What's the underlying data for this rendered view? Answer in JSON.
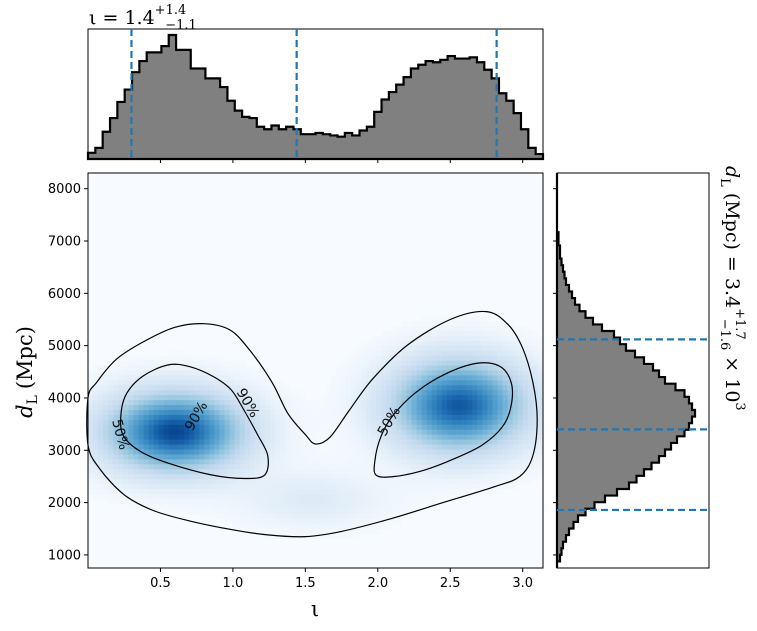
{
  "chart_data": [
    {
      "panel": "inclination-marginal",
      "type": "histogram",
      "title_main": "ι = 1.4",
      "title_sup": "+1.4",
      "title_sub": "−1.1",
      "quantiles": [
        0.3,
        1.44,
        2.82
      ],
      "xlim": [
        0.0,
        3.14
      ],
      "bins": [
        0.0,
        3.14
      ],
      "counts": [
        0.05,
        0.09,
        0.22,
        0.33,
        0.46,
        0.56,
        0.7,
        0.79,
        0.86,
        0.86,
        0.91,
        1.0,
        0.88,
        0.88,
        0.73,
        0.73,
        0.65,
        0.65,
        0.58,
        0.47,
        0.39,
        0.34,
        0.33,
        0.26,
        0.24,
        0.27,
        0.24,
        0.26,
        0.24,
        0.2,
        0.2,
        0.21,
        0.2,
        0.19,
        0.18,
        0.21,
        0.19,
        0.23,
        0.26,
        0.38,
        0.48,
        0.54,
        0.6,
        0.66,
        0.73,
        0.76,
        0.79,
        0.78,
        0.8,
        0.83,
        0.81,
        0.81,
        0.82,
        0.78,
        0.72,
        0.65,
        0.53,
        0.47,
        0.37,
        0.24,
        0.09,
        0.04
      ],
      "fill_color": "#808080",
      "quantile_color": "#1f77b4"
    },
    {
      "panel": "joint-density",
      "type": "heatmap",
      "xlabel": "ι",
      "ylabel": "d",
      "ylabel_sub": "L",
      "ylabel_unit": "(Mpc)",
      "xlim": [
        0.0,
        3.14
      ],
      "ylim": [
        750,
        8300
      ],
      "xticks": [
        "0.5",
        "1.0",
        "1.5",
        "2.0",
        "2.5",
        "3.0"
      ],
      "xtick_values": [
        0.5,
        1.0,
        1.5,
        2.0,
        2.5,
        3.0
      ],
      "yticks": [
        "1000",
        "2000",
        "3000",
        "4000",
        "5000",
        "6000",
        "7000",
        "8000"
      ],
      "ytick_values": [
        1000,
        2000,
        3000,
        4000,
        5000,
        6000,
        7000,
        8000
      ],
      "colormap": "Blues",
      "contour_labels": [
        "90%",
        "50%",
        "90%",
        "50%"
      ],
      "contour_label_positions": [
        [
          0.75,
          3650,
          -60
        ],
        [
          0.22,
          3300,
          75
        ],
        [
          1.1,
          3900,
          60
        ],
        [
          2.08,
          3550,
          -60
        ]
      ],
      "modes": [
        {
          "center": [
            0.6,
            3350
          ],
          "spread": [
            0.33,
            520
          ],
          "weight": 1.0
        },
        {
          "center": [
            2.56,
            3850
          ],
          "spread": [
            0.32,
            600
          ],
          "weight": 0.95
        },
        {
          "center": [
            1.55,
            2050
          ],
          "spread": [
            0.35,
            380
          ],
          "weight": 0.12
        }
      ],
      "contour_90_outer": [
        [
          0.0,
          4000
        ],
        [
          0.06,
          4300
        ],
        [
          0.2,
          4750
        ],
        [
          0.4,
          5100
        ],
        [
          0.6,
          5350
        ],
        [
          0.8,
          5420
        ],
        [
          0.98,
          5300
        ],
        [
          1.12,
          4900
        ],
        [
          1.27,
          4300
        ],
        [
          1.38,
          3700
        ],
        [
          1.5,
          3300
        ],
        [
          1.57,
          3120
        ],
        [
          1.67,
          3250
        ],
        [
          1.8,
          3750
        ],
        [
          1.96,
          4350
        ],
        [
          2.2,
          5000
        ],
        [
          2.5,
          5500
        ],
        [
          2.75,
          5650
        ],
        [
          2.9,
          5400
        ],
        [
          3.0,
          4950
        ],
        [
          3.07,
          4300
        ],
        [
          3.1,
          3600
        ],
        [
          3.07,
          2900
        ],
        [
          2.98,
          2500
        ],
        [
          2.8,
          2300
        ],
        [
          2.45,
          2000
        ],
        [
          2.1,
          1700
        ],
        [
          1.75,
          1450
        ],
        [
          1.5,
          1350
        ],
        [
          1.25,
          1380
        ],
        [
          1.0,
          1480
        ],
        [
          0.7,
          1650
        ],
        [
          0.45,
          1850
        ],
        [
          0.25,
          2150
        ],
        [
          0.08,
          2650
        ],
        [
          0.0,
          3100
        ]
      ],
      "contour_50_left": [
        [
          0.23,
          3750
        ],
        [
          0.27,
          4100
        ],
        [
          0.38,
          4420
        ],
        [
          0.55,
          4630
        ],
        [
          0.7,
          4600
        ],
        [
          0.87,
          4400
        ],
        [
          0.99,
          4150
        ],
        [
          1.08,
          3750
        ],
        [
          1.17,
          3300
        ],
        [
          1.24,
          2900
        ],
        [
          1.22,
          2530
        ],
        [
          1.08,
          2460
        ],
        [
          0.85,
          2530
        ],
        [
          0.56,
          2750
        ],
        [
          0.36,
          2980
        ],
        [
          0.24,
          3300
        ]
      ],
      "contour_50_right": [
        [
          1.98,
          2800
        ],
        [
          2.02,
          3250
        ],
        [
          2.1,
          3650
        ],
        [
          2.26,
          4100
        ],
        [
          2.46,
          4450
        ],
        [
          2.68,
          4660
        ],
        [
          2.84,
          4610
        ],
        [
          2.92,
          4300
        ],
        [
          2.92,
          3850
        ],
        [
          2.86,
          3450
        ],
        [
          2.72,
          3100
        ],
        [
          2.52,
          2830
        ],
        [
          2.32,
          2620
        ],
        [
          2.12,
          2500
        ],
        [
          1.99,
          2520
        ]
      ],
      "contour_color": "#000000"
    },
    {
      "panel": "distance-marginal",
      "type": "histogram",
      "orientation": "horizontal",
      "title_main": "d",
      "title_sub_letter": "L",
      "title_unit": "(Mpc) = 3.4",
      "title_sup": "+1.7",
      "title_sub": "−1.6",
      "title_suffix": "× 10",
      "title_exp": "3",
      "quantiles": [
        1860,
        3400,
        5120
      ],
      "ylim": [
        750,
        8300
      ],
      "bins": [
        750,
        8300
      ],
      "counts": [
        0.0,
        0.02,
        0.03,
        0.04,
        0.06,
        0.08,
        0.11,
        0.14,
        0.19,
        0.25,
        0.32,
        0.4,
        0.48,
        0.53,
        0.58,
        0.63,
        0.68,
        0.72,
        0.76,
        0.8,
        0.85,
        0.88,
        0.9,
        0.92,
        0.9,
        0.88,
        0.85,
        0.79,
        0.72,
        0.68,
        0.64,
        0.58,
        0.52,
        0.46,
        0.42,
        0.38,
        0.3,
        0.24,
        0.19,
        0.15,
        0.12,
        0.1,
        0.08,
        0.06,
        0.05,
        0.04,
        0.03,
        0.02,
        0.02,
        0.01,
        0.01,
        0.0,
        0.0,
        0.0,
        0.0,
        0.0,
        0.0,
        0.0,
        0.0,
        0.0
      ],
      "fill_color": "#808080",
      "quantile_color": "#1f77b4"
    }
  ]
}
